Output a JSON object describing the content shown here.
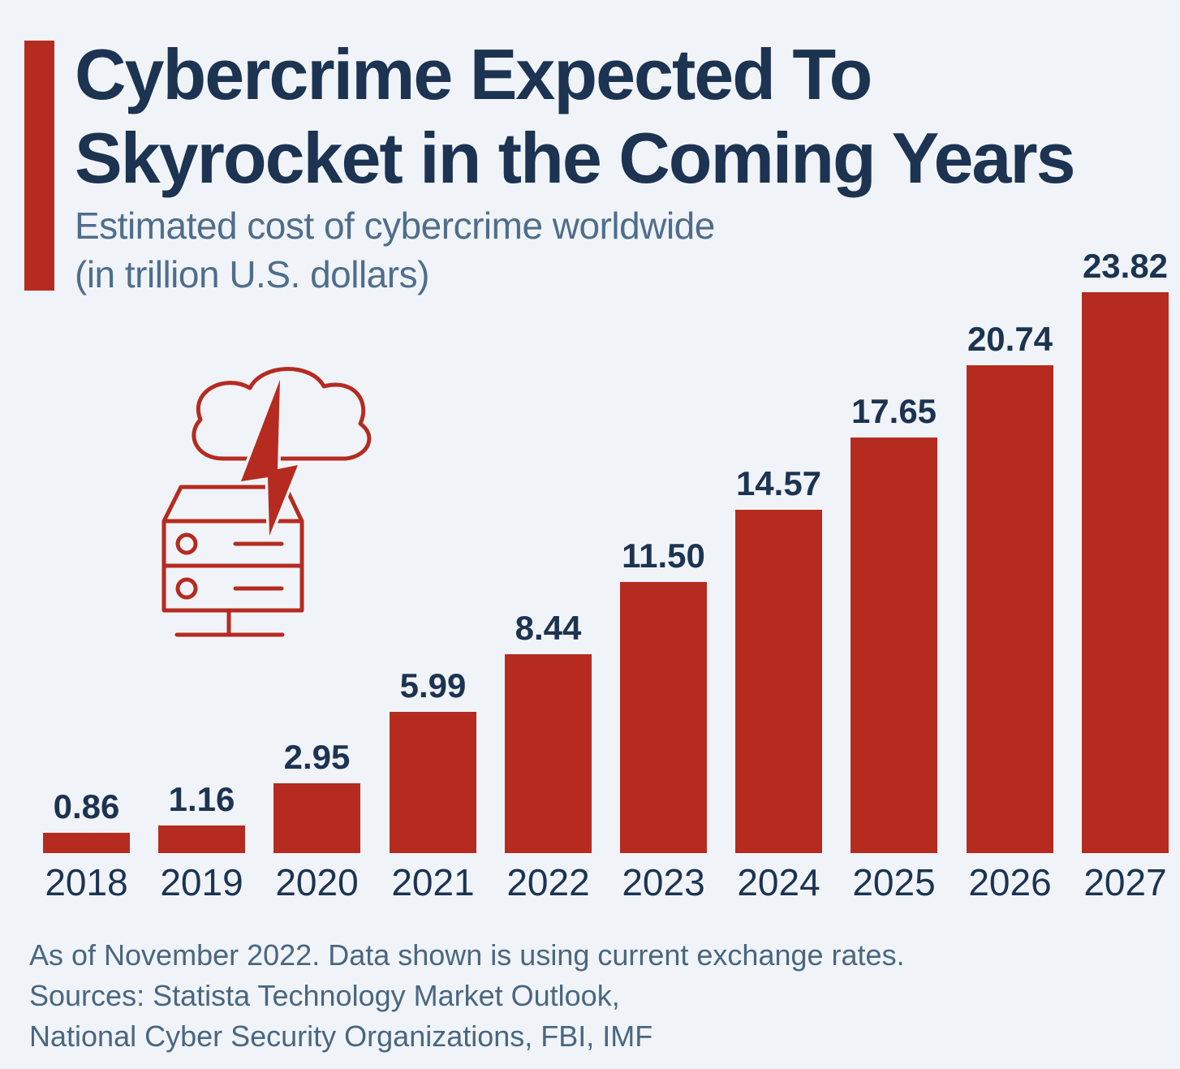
{
  "page": {
    "background": "#f0f4f8"
  },
  "header": {
    "accent_color": "#b52b20",
    "title_color": "#1c3351",
    "title_line1": "Cybercrime Expected To",
    "title_line2": "Skyrocket in the Coming Years",
    "subtitle_color": "#4f6d8b",
    "subtitle_line1": "Estimated cost of cybercrime worldwide",
    "subtitle_line2": "(in trillion U.S. dollars)"
  },
  "chart_data": {
    "type": "bar",
    "title": "Cybercrime Expected To Skyrocket in the Coming Years",
    "subtitle": "Estimated cost of cybercrime worldwide (in trillion U.S. dollars)",
    "unit": "trillion U.S. dollars",
    "categories": [
      "2018",
      "2019",
      "2020",
      "2021",
      "2022",
      "2023",
      "2024",
      "2025",
      "2026",
      "2027"
    ],
    "values": [
      0.86,
      1.16,
      2.95,
      5.99,
      8.44,
      11.5,
      14.57,
      17.65,
      20.74,
      23.82
    ],
    "value_labels": [
      "0.86",
      "1.16",
      "2.95",
      "5.99",
      "8.44",
      "11.50",
      "14.57",
      "17.65",
      "20.74",
      "23.82"
    ],
    "bar_color": "#b52b20",
    "label_color": "#1c3351",
    "xlabel": "",
    "ylabel": "",
    "ylim": [
      0,
      24
    ],
    "grid": false,
    "legend": false
  },
  "icon": {
    "name": "cloud-lightning-server",
    "color": "#b52b20"
  },
  "footer": {
    "color": "#4a6680",
    "line1": "As of November 2022. Data shown is using current exchange rates.",
    "line2": "Sources: Statista Technology Market Outlook,",
    "line3": "National Cyber Security Organizations, FBI, IMF"
  }
}
